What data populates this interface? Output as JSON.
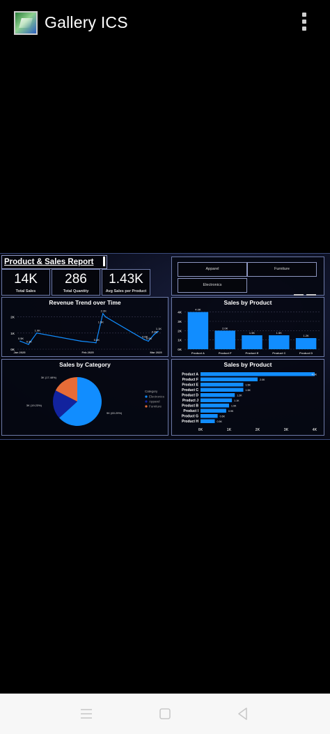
{
  "app": {
    "title": "Gallery ICS",
    "icon": "gallery-app-icon"
  },
  "report": {
    "title": "Product & Sales Report",
    "kpis": [
      {
        "value": "14K",
        "label": "Total Sales"
      },
      {
        "value": "286",
        "label": "Total Quantity"
      },
      {
        "value": "1.43K",
        "label": "Avg Sales per Product"
      }
    ],
    "slicers": [
      "Apparel",
      "Furniture",
      "Electronics"
    ]
  },
  "colors": {
    "bar": "#118dff",
    "pie_electronics": "#118dff",
    "pie_apparel": "#12239e",
    "pie_furniture": "#e66c37"
  },
  "chart_data": [
    {
      "type": "line",
      "title": "Revenue Trend over Time",
      "x_ticks": [
        "Jan 2025",
        "Feb 2025",
        "Mar 2025"
      ],
      "y_ticks": [
        "2K",
        "1K",
        "0K"
      ],
      "ylim": [
        0,
        2.5
      ],
      "points": [
        {
          "t": 0.0,
          "v": 0.5,
          "label": "0.5K"
        },
        {
          "t": 0.06,
          "v": 0.3,
          "label": "0.3K"
        },
        {
          "t": 0.12,
          "v": 1.0,
          "label": "1.0K"
        },
        {
          "t": 0.44,
          "v": 0.5,
          "label": ""
        },
        {
          "t": 0.55,
          "v": 0.4,
          "label": "0.4K"
        },
        {
          "t": 0.58,
          "v": 1.5,
          "label": "1.5K"
        },
        {
          "t": 0.6,
          "v": 2.2,
          "label": "2.2K"
        },
        {
          "t": 0.62,
          "v": 2.0,
          "label": ""
        },
        {
          "t": 0.9,
          "v": 0.6,
          "label": "0.6K"
        },
        {
          "t": 0.93,
          "v": 0.5,
          "label": "0.5K"
        },
        {
          "t": 0.97,
          "v": 0.9,
          "label": "0.9K"
        },
        {
          "t": 1.0,
          "v": 1.1,
          "label": "1.1K"
        }
      ]
    },
    {
      "type": "bar",
      "title": "Sales by Product",
      "categories": [
        "Product A",
        "Product F",
        "Product E",
        "Product C",
        "Product D"
      ],
      "values": [
        4.0,
        2.0,
        1.5,
        1.5,
        1.2
      ],
      "data_labels": [
        "4.0K",
        "2.0K",
        "1.5K",
        "1.5K",
        "1.2K"
      ],
      "y_ticks": [
        "4K",
        "3K",
        "2K",
        "1K",
        "0K"
      ],
      "ylim": [
        0,
        4.2
      ]
    },
    {
      "type": "pie",
      "title": "Sales by Category",
      "slices": [
        {
          "name": "Electronics",
          "value": 63.29,
          "label": "9K (63.29%)"
        },
        {
          "name": "Apparel",
          "value": 19.23,
          "label": "3K (19.23%)"
        },
        {
          "name": "Furniture",
          "value": 17.48,
          "label": "3K (17.48%)"
        }
      ],
      "legend_title": "Category"
    },
    {
      "type": "bar",
      "orientation": "horizontal",
      "title": "Sales by Product",
      "categories": [
        "Product A",
        "Product F",
        "Product E",
        "Product C",
        "Product D",
        "Product J",
        "Product B",
        "Product I",
        "Product G",
        "Product H"
      ],
      "values": [
        4.0,
        2.0,
        1.5,
        1.5,
        1.2,
        1.1,
        1.0,
        0.9,
        0.6,
        0.5
      ],
      "data_labels": [
        "4.0K",
        "2.0K",
        "1.5K",
        "1.5K",
        "1.2K",
        "1.1K",
        "1.0K",
        "0.9K",
        "0.6K",
        "0.5K"
      ],
      "x_ticks": [
        "0K",
        "1K",
        "2K",
        "3K",
        "4K"
      ],
      "xlim": [
        0,
        4
      ]
    }
  ]
}
